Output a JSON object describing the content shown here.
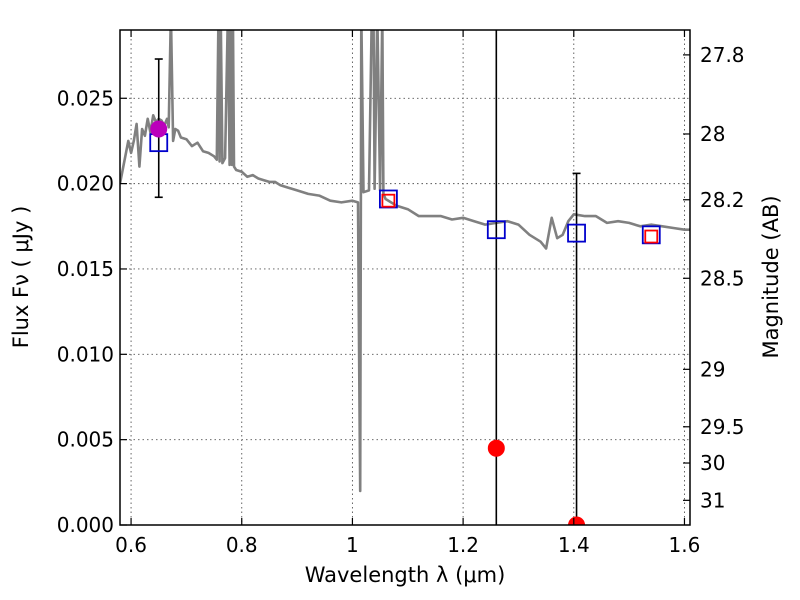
{
  "chart_data": {
    "type": "line",
    "xlabel": "Wavelength  λ (μm)",
    "ylabel": "Flux  Fν  ( μJy )",
    "y2label": "Magnitude (AB)",
    "xlim": [
      0.58,
      1.61
    ],
    "ylim": [
      0.0,
      0.029
    ],
    "grid": true,
    "x_ticks": [
      0.6,
      0.8,
      1.0,
      1.2,
      1.4,
      1.6
    ],
    "x_tick_labels": [
      "0.6",
      "0.8",
      "1",
      "1.2",
      "1.4",
      "1.6"
    ],
    "y_ticks": [
      0.0,
      0.005,
      0.01,
      0.015,
      0.02,
      0.025
    ],
    "y_tick_labels": [
      "0.000",
      "0.005",
      "0.010",
      "0.015",
      "0.020",
      "0.025"
    ],
    "y2_ticks": [
      {
        "label": "27.8",
        "mag": 27.8
      },
      {
        "label": "28",
        "mag": 28.0
      },
      {
        "label": "28.2",
        "mag": 28.2
      },
      {
        "label": "28.5",
        "mag": 28.5
      },
      {
        "label": "29",
        "mag": 29.0
      },
      {
        "label": "29.5",
        "mag": 29.5
      },
      {
        "label": "30",
        "mag": 30.0
      },
      {
        "label": "31",
        "mag": 31.0
      }
    ],
    "series": [
      {
        "kind": "sed_model",
        "color": "#808080",
        "x": [
          0.58,
          0.595,
          0.6,
          0.605,
          0.61,
          0.615,
          0.62,
          0.625,
          0.63,
          0.635,
          0.64,
          0.645,
          0.65,
          0.655,
          0.66,
          0.665,
          0.668,
          0.672,
          0.676,
          0.68,
          0.685,
          0.69,
          0.7,
          0.71,
          0.72,
          0.73,
          0.74,
          0.75,
          0.755,
          0.758,
          0.76,
          0.762,
          0.765,
          0.77,
          0.775,
          0.778,
          0.78,
          0.782,
          0.784,
          0.786,
          0.79,
          0.8,
          0.81,
          0.82,
          0.83,
          0.84,
          0.85,
          0.86,
          0.87,
          0.88,
          0.9,
          0.92,
          0.94,
          0.96,
          0.98,
          1.0,
          1.01,
          1.012,
          1.014,
          1.016,
          1.02,
          1.03,
          1.035,
          1.038,
          1.04,
          1.045,
          1.05,
          1.054,
          1.056,
          1.06,
          1.08,
          1.1,
          1.12,
          1.14,
          1.16,
          1.18,
          1.2,
          1.22,
          1.24,
          1.26,
          1.28,
          1.3,
          1.32,
          1.34,
          1.35,
          1.36,
          1.37,
          1.38,
          1.39,
          1.4,
          1.42,
          1.44,
          1.46,
          1.48,
          1.5,
          1.52,
          1.54,
          1.56,
          1.58,
          1.6,
          1.61
        ],
        "values": [
          0.02,
          0.0225,
          0.0218,
          0.0225,
          0.0235,
          0.021,
          0.0232,
          0.0228,
          0.0238,
          0.023,
          0.024,
          0.0236,
          0.0238,
          0.0237,
          0.0234,
          0.0238,
          0.0233,
          0.03,
          0.0225,
          0.0232,
          0.0231,
          0.0227,
          0.0226,
          0.0222,
          0.0224,
          0.0219,
          0.0218,
          0.0216,
          0.0214,
          0.03,
          0.0213,
          0.03,
          0.0212,
          0.0215,
          0.03,
          0.0211,
          0.03,
          0.0211,
          0.03,
          0.021,
          0.0208,
          0.0207,
          0.0204,
          0.0205,
          0.0203,
          0.0202,
          0.0201,
          0.0201,
          0.0199,
          0.0198,
          0.0196,
          0.0194,
          0.0193,
          0.019,
          0.0189,
          0.019,
          0.0189,
          0.01,
          0.002,
          0.03,
          0.0195,
          0.0196,
          0.03,
          0.03,
          0.0197,
          0.03,
          0.0196,
          0.03,
          0.0194,
          0.0191,
          0.0187,
          0.0185,
          0.0181,
          0.0181,
          0.0181,
          0.0179,
          0.018,
          0.0178,
          0.0176,
          0.0177,
          0.0178,
          0.0176,
          0.017,
          0.0166,
          0.0162,
          0.018,
          0.0168,
          0.017,
          0.0178,
          0.0182,
          0.0181,
          0.0181,
          0.0177,
          0.0178,
          0.0177,
          0.0175,
          0.0176,
          0.0175,
          0.0174,
          0.0173,
          0.0173
        ]
      },
      {
        "kind": "model_photometry",
        "color": "#0000cc",
        "marker": "open-square",
        "x": [
          0.65,
          1.065,
          1.26,
          1.405,
          1.54
        ],
        "values": [
          0.0224,
          0.0191,
          0.0173,
          0.0171,
          0.017
        ]
      },
      {
        "kind": "observed_photometry_square",
        "color": "#ff0000",
        "marker": "open-square",
        "x": [
          1.065,
          1.54
        ],
        "values": [
          0.019,
          0.0169
        ]
      },
      {
        "kind": "observed_detection",
        "color": "#bb00bb",
        "marker": "filled-circle",
        "x": [
          0.65
        ],
        "values": [
          0.0232
        ],
        "err_low": [
          0.0192
        ],
        "err_high": [
          0.0273
        ]
      },
      {
        "kind": "observed_upper",
        "color": "#ff0000",
        "marker": "filled-circle",
        "x": [
          1.26,
          1.405
        ],
        "values": [
          0.0045,
          0.0
        ],
        "err_low": [
          0.0,
          0.0
        ],
        "err_high": [
          0.03,
          0.0206
        ]
      }
    ]
  }
}
